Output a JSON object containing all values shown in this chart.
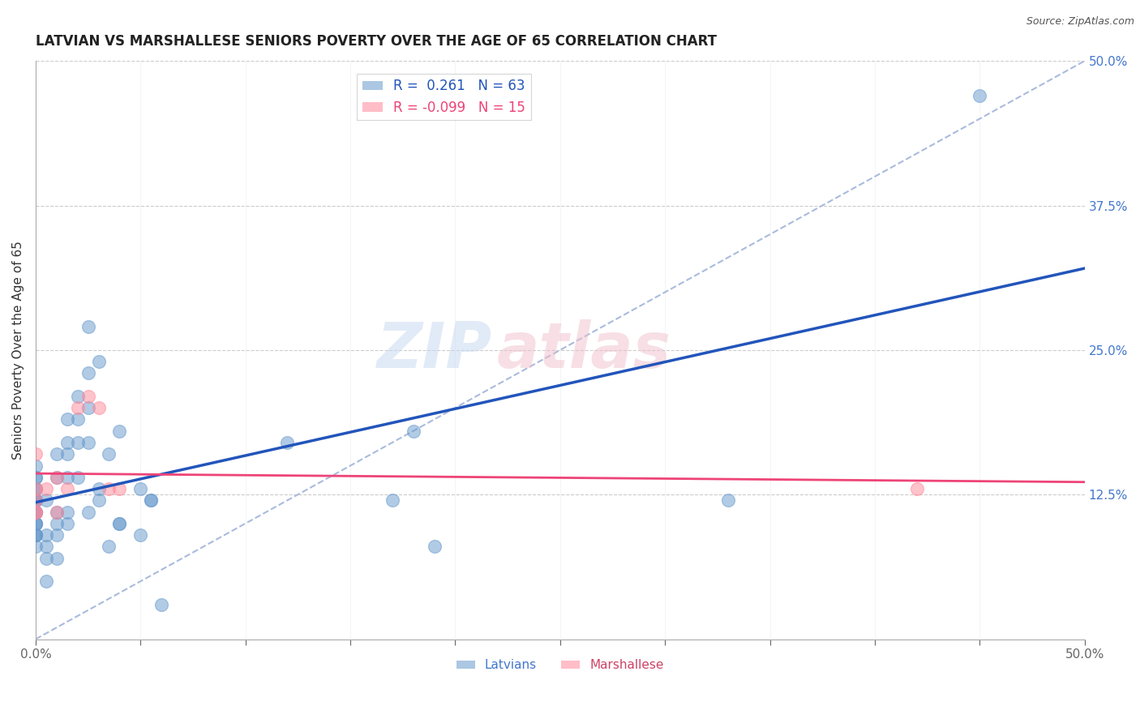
{
  "title": "LATVIAN VS MARSHALLESE SENIORS POVERTY OVER THE AGE OF 65 CORRELATION CHART",
  "source": "Source: ZipAtlas.com",
  "ylabel": "Seniors Poverty Over the Age of 65",
  "xlim": [
    0,
    0.5
  ],
  "ylim": [
    0,
    0.5
  ],
  "xticks_minor": [
    0.0,
    0.05,
    0.1,
    0.15,
    0.2,
    0.25,
    0.3,
    0.35,
    0.4,
    0.45,
    0.5
  ],
  "xticks_labeled": [
    0.0,
    0.5
  ],
  "xtick_labels": [
    "0.0%",
    "50.0%"
  ],
  "yticks": [
    0.125,
    0.25,
    0.375,
    0.5
  ],
  "ytick_labels": [
    "12.5%",
    "25.0%",
    "37.5%",
    "50.0%"
  ],
  "latvian_color": "#6699cc",
  "marshallese_color": "#ff8899",
  "trend_latvian_color": "#2255bb",
  "trend_marshallese_color": "#ee4477",
  "trend_dashed_color": "#aabbdd",
  "grid_color": "#cccccc",
  "background_color": "#ffffff",
  "legend_r_latvian": "0.261",
  "legend_n_latvian": "63",
  "legend_r_marshallese": "-0.099",
  "legend_n_marshallese": "15",
  "latvian_x": [
    0.0,
    0.0,
    0.0,
    0.0,
    0.0,
    0.0,
    0.0,
    0.0,
    0.0,
    0.0,
    0.0,
    0.0,
    0.0,
    0.0,
    0.0,
    0.0,
    0.0,
    0.0,
    0.005,
    0.005,
    0.005,
    0.005,
    0.005,
    0.01,
    0.01,
    0.01,
    0.01,
    0.01,
    0.01,
    0.015,
    0.015,
    0.015,
    0.015,
    0.015,
    0.015,
    0.02,
    0.02,
    0.02,
    0.02,
    0.025,
    0.025,
    0.025,
    0.025,
    0.025,
    0.03,
    0.03,
    0.03,
    0.035,
    0.035,
    0.04,
    0.04,
    0.04,
    0.05,
    0.05,
    0.055,
    0.055,
    0.06,
    0.12,
    0.17,
    0.18,
    0.19,
    0.33,
    0.45
  ],
  "latvian_y": [
    0.08,
    0.09,
    0.09,
    0.09,
    0.1,
    0.1,
    0.1,
    0.11,
    0.11,
    0.11,
    0.12,
    0.12,
    0.12,
    0.13,
    0.13,
    0.14,
    0.14,
    0.15,
    0.05,
    0.07,
    0.08,
    0.09,
    0.12,
    0.07,
    0.09,
    0.1,
    0.11,
    0.14,
    0.16,
    0.1,
    0.11,
    0.14,
    0.16,
    0.17,
    0.19,
    0.14,
    0.17,
    0.19,
    0.21,
    0.11,
    0.17,
    0.2,
    0.23,
    0.27,
    0.12,
    0.13,
    0.24,
    0.08,
    0.16,
    0.1,
    0.1,
    0.18,
    0.09,
    0.13,
    0.12,
    0.12,
    0.03,
    0.17,
    0.12,
    0.18,
    0.08,
    0.12,
    0.47
  ],
  "marshallese_x": [
    0.0,
    0.0,
    0.0,
    0.0,
    0.0,
    0.005,
    0.01,
    0.01,
    0.015,
    0.02,
    0.025,
    0.03,
    0.035,
    0.04,
    0.42
  ],
  "marshallese_y": [
    0.11,
    0.11,
    0.12,
    0.13,
    0.16,
    0.13,
    0.11,
    0.14,
    0.13,
    0.2,
    0.21,
    0.2,
    0.13,
    0.13,
    0.13
  ]
}
